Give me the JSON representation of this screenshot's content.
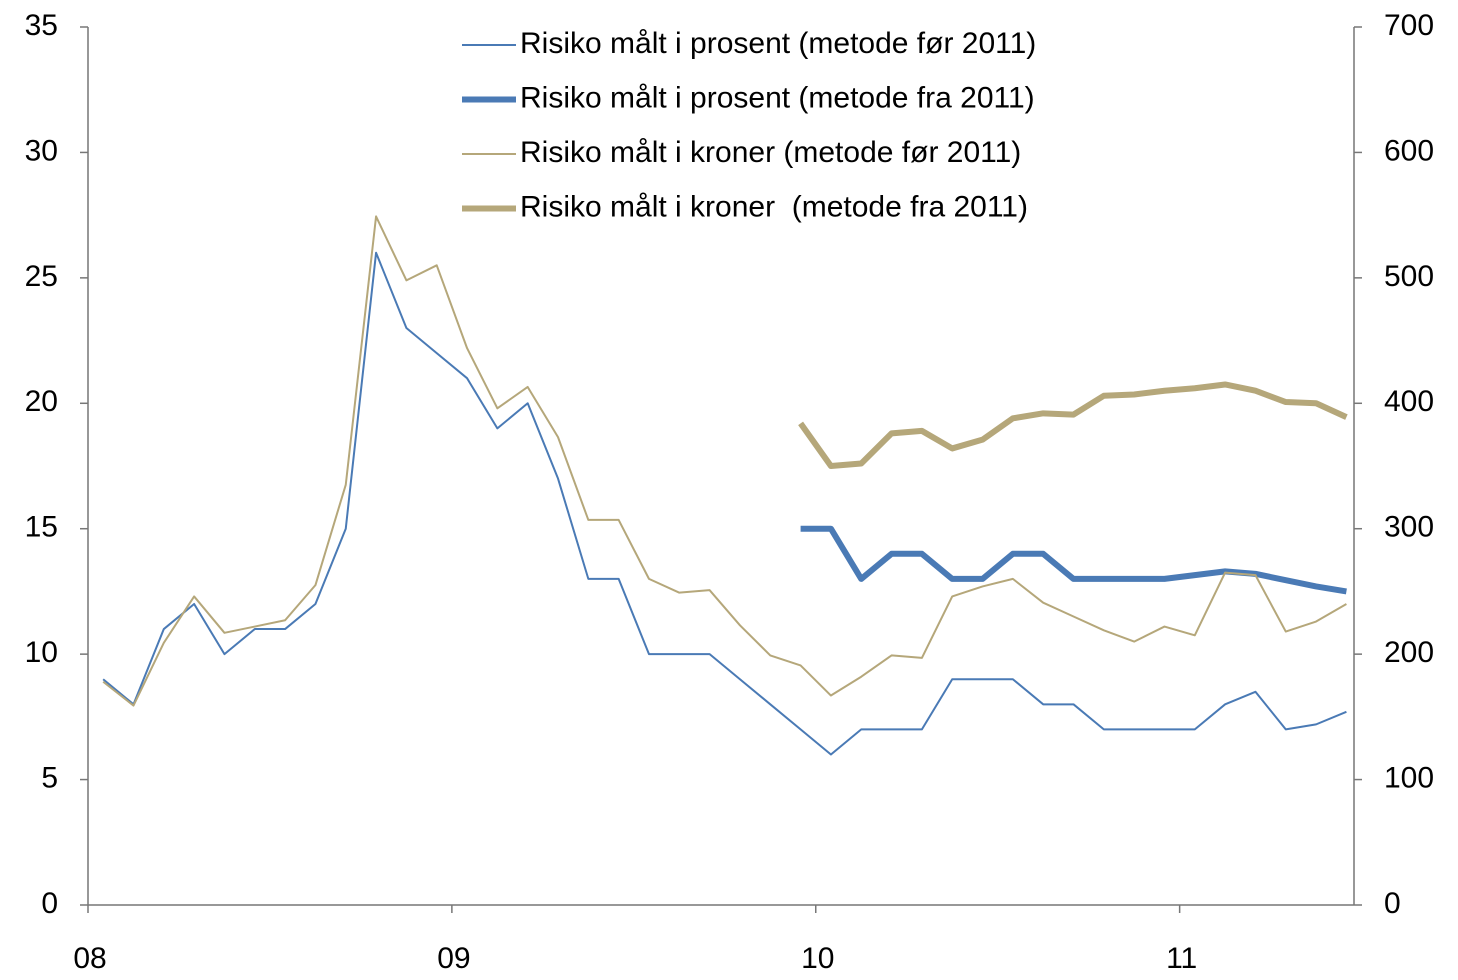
{
  "chart_data": {
    "type": "line",
    "x": [
      0.5,
      1.5,
      2.5,
      3.5,
      4.5,
      5.5,
      6.5,
      7.5,
      8.5,
      9.5,
      10.5,
      11.5,
      12.5,
      13.5,
      14.5,
      15.5,
      16.5,
      17.5,
      18.5,
      19.5,
      20.5,
      21.5,
      22.5,
      23.5,
      24.5,
      25.5,
      26.5,
      27.5,
      28.5,
      29.5,
      30.5,
      31.5,
      32.5,
      33.5,
      34.5,
      35.5,
      36.5,
      37.5,
      38.5,
      39.5,
      40.5,
      41.5
    ],
    "xlim": [
      0,
      41.75
    ],
    "xticks": [
      {
        "value": 0,
        "label": "08"
      },
      {
        "value": 12,
        "label": "09"
      },
      {
        "value": 24,
        "label": "10"
      },
      {
        "value": 36,
        "label": "11"
      }
    ],
    "ylim": [
      0,
      35
    ],
    "yticks": [
      0,
      5,
      10,
      15,
      20,
      25,
      30,
      35
    ],
    "y2lim": [
      0,
      700
    ],
    "y2ticks": [
      0,
      100,
      200,
      300,
      400,
      500,
      600,
      700
    ],
    "legend": "top",
    "series": [
      {
        "name": "Risiko målt i prosent (metode før 2011)",
        "color": "#4a7ab5",
        "line_width": 2,
        "values": [
          9,
          8,
          11,
          12,
          10,
          11,
          11,
          12,
          15,
          26,
          23,
          22,
          21,
          19,
          20,
          17,
          13,
          13,
          10,
          10,
          10,
          9,
          8,
          7,
          6,
          7,
          7,
          7,
          9,
          9,
          9,
          8,
          8,
          7,
          7,
          7,
          7,
          8,
          8.5,
          7,
          7.2,
          7.7
        ]
      },
      {
        "name": "Risiko målt i prosent (metode fra 2011)",
        "color": "#4a7ab5",
        "line_width": 6,
        "values": [
          null,
          null,
          null,
          null,
          null,
          null,
          null,
          null,
          null,
          null,
          null,
          null,
          null,
          null,
          null,
          null,
          null,
          null,
          null,
          null,
          null,
          null,
          null,
          15,
          15,
          13,
          14,
          14,
          13,
          13,
          14,
          14,
          13,
          13,
          13,
          13,
          13.15,
          13.3,
          13.2,
          12.95,
          12.7,
          12.5
        ]
      },
      {
        "name": "Risiko målt i kroner (metode før 2011)",
        "color": "#b5a77a",
        "line_width": 2,
        "axis": "y2",
        "values": [
          178,
          159,
          209,
          246,
          217,
          222,
          227,
          255,
          335,
          549,
          498,
          510,
          444,
          396,
          413,
          373,
          307,
          307,
          260,
          249,
          251,
          223,
          199,
          191,
          167,
          182,
          199,
          197,
          246,
          254,
          260,
          241,
          230,
          219,
          210,
          222,
          215,
          265,
          263,
          218,
          226,
          240
        ]
      },
      {
        "name": "Risiko målt i kroner  (metode fra 2011)",
        "color": "#b5a77a",
        "line_width": 6,
        "axis": "y2",
        "values": [
          null,
          null,
          null,
          null,
          null,
          null,
          null,
          null,
          null,
          null,
          null,
          null,
          null,
          null,
          null,
          null,
          null,
          null,
          null,
          null,
          null,
          null,
          null,
          384,
          350,
          352,
          376,
          378,
          364,
          371,
          388,
          392,
          391,
          406,
          407,
          410,
          412,
          415,
          410,
          401,
          400,
          389
        ]
      }
    ]
  }
}
